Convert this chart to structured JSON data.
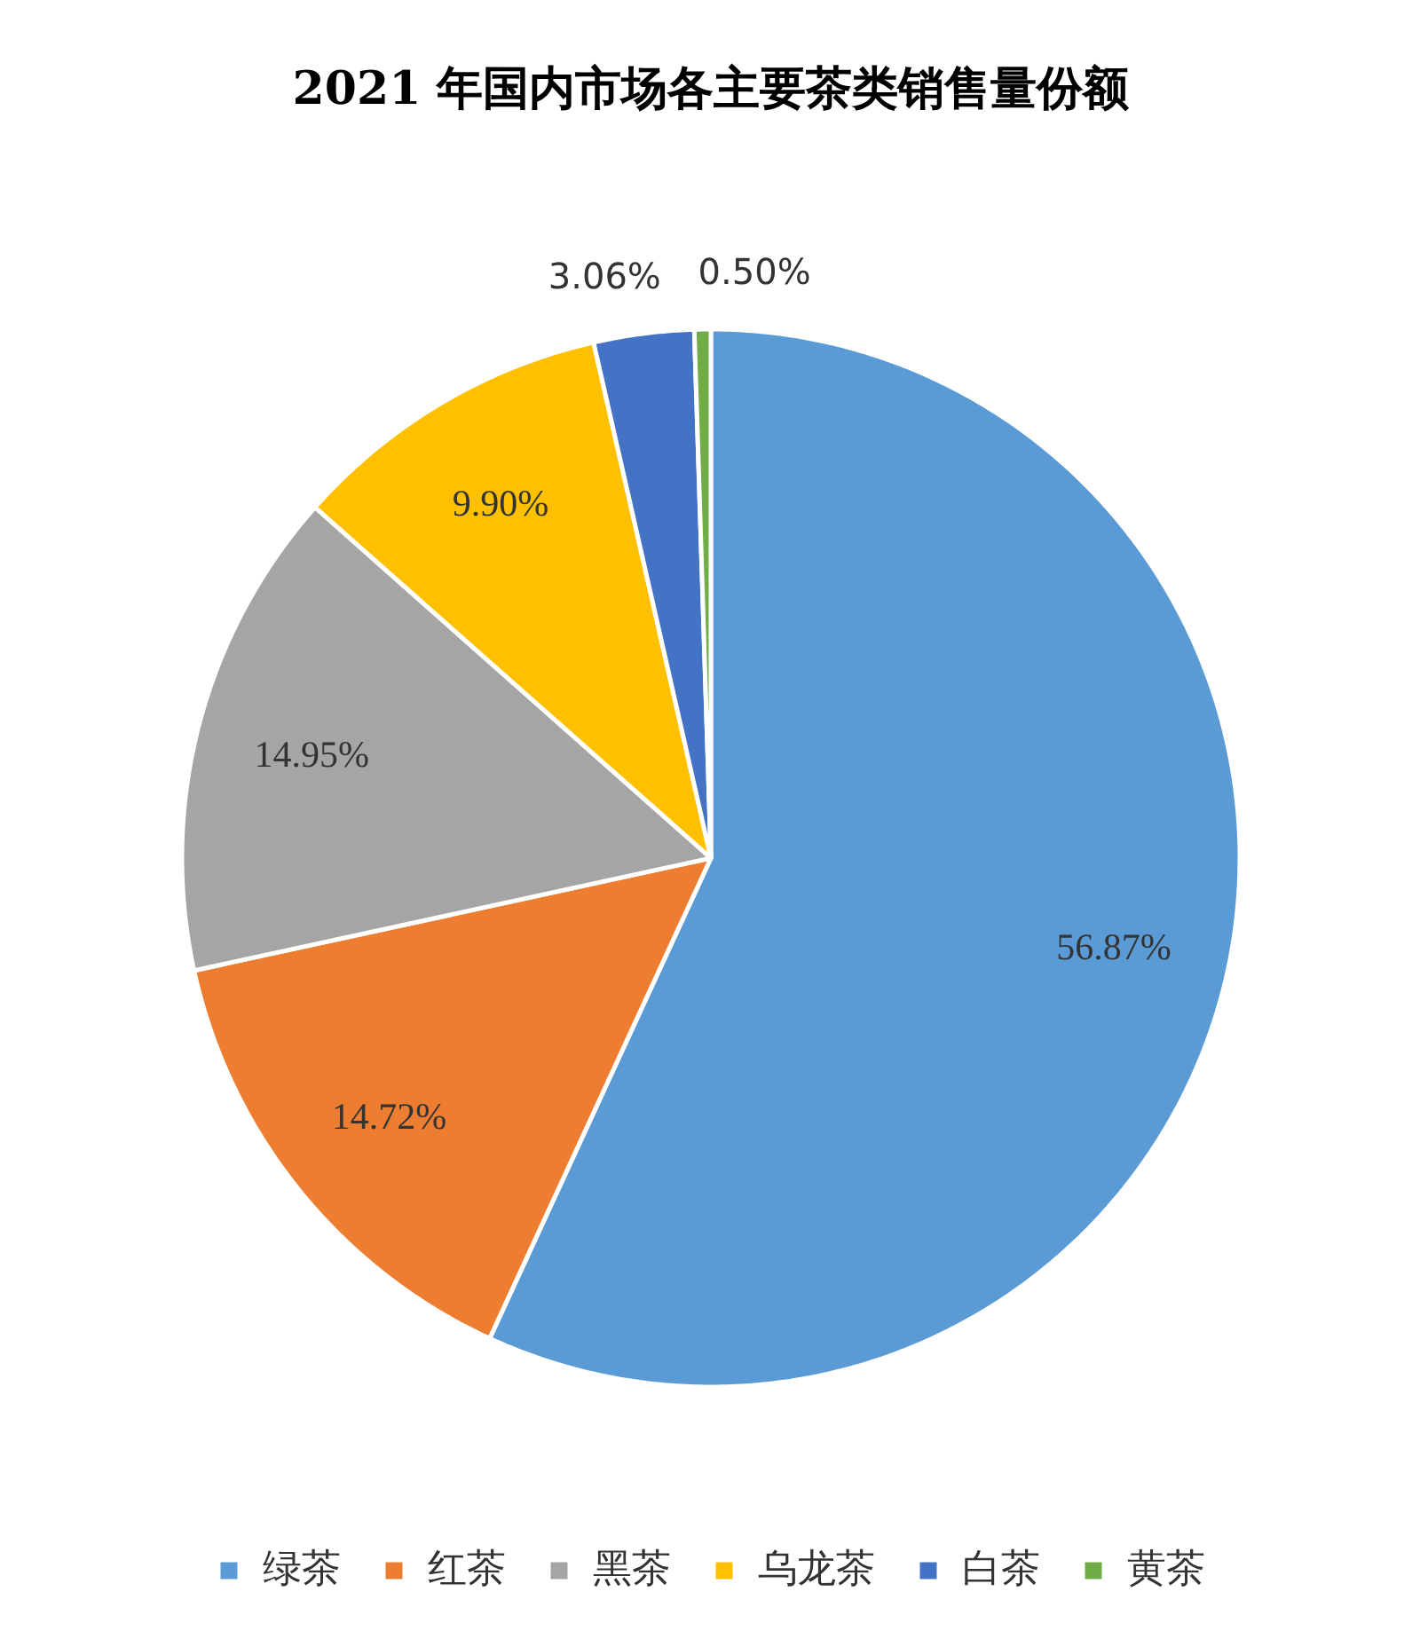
{
  "chart_data": {
    "type": "pie",
    "title": "2021 年国内市场各主要茶类销售量份额",
    "categories": [
      "绿茶",
      "红茶",
      "黑茶",
      "乌龙茶",
      "白茶",
      "黄茶"
    ],
    "values": [
      56.87,
      14.72,
      14.95,
      9.9,
      3.06,
      0.5
    ],
    "colors": [
      "#5b9bd5",
      "#ed7d31",
      "#a5a5a5",
      "#ffc000",
      "#4472c4",
      "#70ad47"
    ],
    "value_labels": [
      "56.87%",
      "14.72%",
      "14.95%",
      "9.90%",
      "3.06%",
      "0.50%"
    ],
    "legend": "bottom"
  }
}
